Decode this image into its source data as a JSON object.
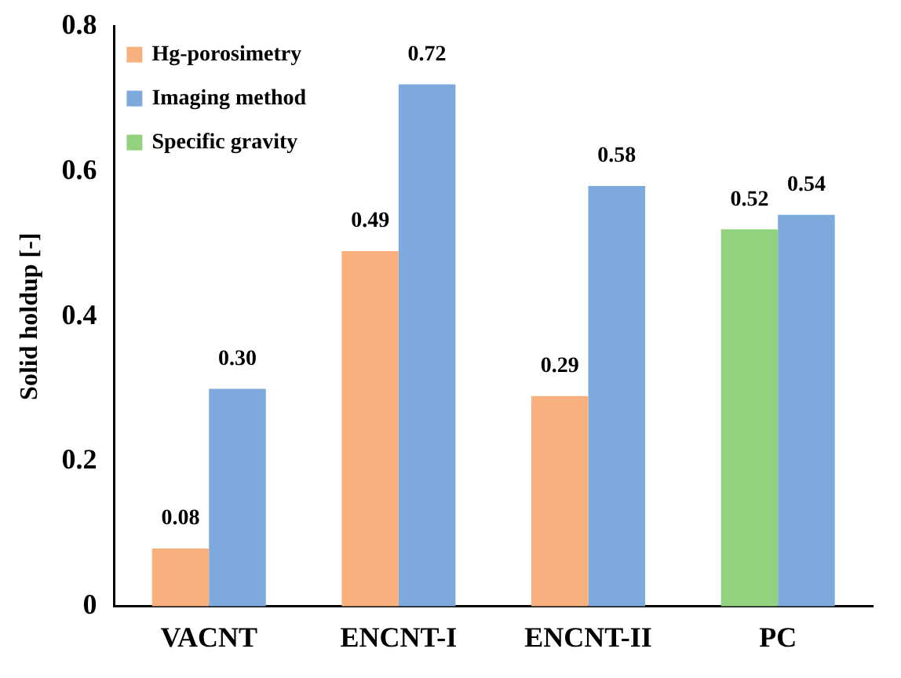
{
  "chart_data": {
    "type": "bar",
    "ylabel": "Solid holdup [-]",
    "categories": [
      "VACNT",
      "ENCNT-I",
      "ENCNT-II",
      "PC"
    ],
    "series": [
      {
        "name": "Hg-porosimetry",
        "color": "#f8b07e",
        "values": [
          0.08,
          0.49,
          0.29,
          null
        ],
        "value_labels": [
          "0.08",
          "0.49",
          "0.29",
          null
        ]
      },
      {
        "name": "Imaging method",
        "color": "#7ea9dc",
        "values": [
          0.3,
          0.72,
          0.58,
          0.54
        ],
        "value_labels": [
          "0.30",
          "0.72",
          "0.58",
          "0.54"
        ]
      },
      {
        "name": "Specific gravity",
        "color": "#92d27f",
        "values": [
          null,
          null,
          null,
          0.52
        ],
        "value_labels": [
          null,
          null,
          null,
          "0.52"
        ]
      }
    ],
    "ylim": [
      0,
      0.8
    ],
    "yticks": [
      0,
      0.2,
      0.4,
      0.6,
      0.8
    ],
    "grid": false,
    "legend": "top left"
  }
}
